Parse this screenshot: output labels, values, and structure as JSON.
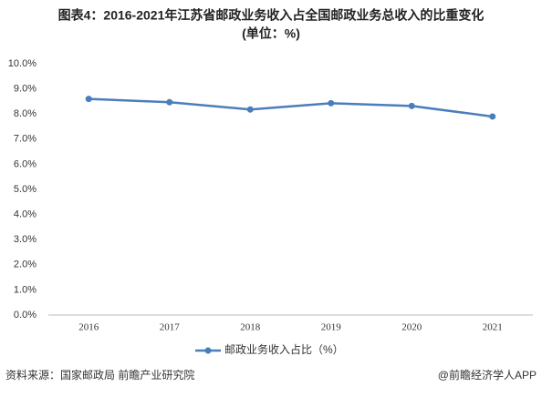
{
  "chart_data": {
    "type": "line",
    "title": "图表4：2016-2021年江苏省邮政业务收入占全国邮政业务总收入的比重变化",
    "subtitle": "(单位：%)",
    "categories": [
      "2016",
      "2017",
      "2018",
      "2019",
      "2020",
      "2021"
    ],
    "series": [
      {
        "name": "邮政业务收入占比（%）",
        "color": "#4a7ebb",
        "values": [
          8.6,
          8.47,
          8.18,
          8.43,
          8.32,
          7.9
        ]
      }
    ],
    "ylim": [
      0,
      10
    ],
    "yticks": [
      {
        "value": 0,
        "label": "0.0%"
      },
      {
        "value": 1,
        "label": "1.0%"
      },
      {
        "value": 2,
        "label": "2.0%"
      },
      {
        "value": 3,
        "label": "3.0%"
      },
      {
        "value": 4,
        "label": "4.0%"
      },
      {
        "value": 5,
        "label": "5.0%"
      },
      {
        "value": 6,
        "label": "6.0%"
      },
      {
        "value": 7,
        "label": "7.0%"
      },
      {
        "value": 8,
        "label": "8.0%"
      },
      {
        "value": 9,
        "label": "9.0%"
      },
      {
        "value": 10,
        "label": "10.0%"
      }
    ],
    "grid": false,
    "source": "资料来源：国家邮政局 前瞻产业研究院",
    "credit": "@前瞻经济学人APP"
  }
}
